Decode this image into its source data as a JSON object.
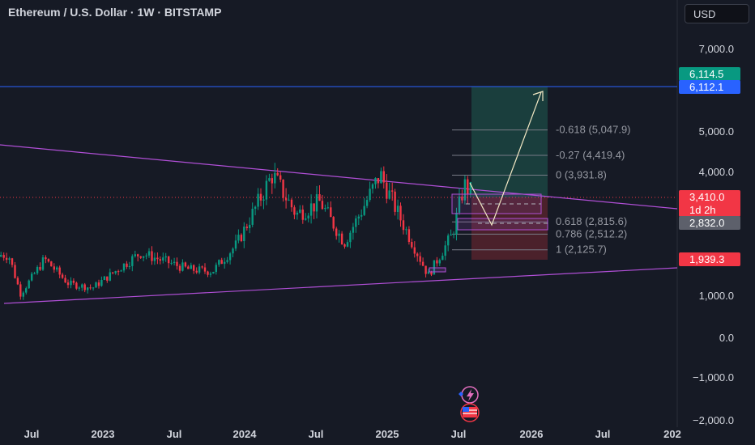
{
  "header": {
    "title": "Ethereum / U.S. Dollar · 1W · BITSTAMP",
    "currency": "USD"
  },
  "axis": {
    "y_ticks": [
      "7,000.0",
      "5,000.0",
      "4,000.0",
      "1,000.0",
      "0.0",
      "−1,000.0",
      "−2,000.0"
    ],
    "x_ticks": [
      "Jul",
      "2023",
      "Jul",
      "2024",
      "Jul",
      "2025",
      "Jul",
      "2026",
      "Jul",
      "202"
    ]
  },
  "price_tags": {
    "target_high": "6,114.5",
    "target_line": "6,112.1",
    "current_price": "3,410.0",
    "countdown": "1d 2h",
    "level_2832": "2,832.0",
    "level_1939": "1,939.3"
  },
  "fib_levels": [
    {
      "label": "-0.618 (5,047.9)",
      "price": 5047.9
    },
    {
      "label": "-0.27 (4,419.4)",
      "price": 4419.4
    },
    {
      "label": "0 (3,931.8)",
      "price": 3931.8
    },
    {
      "label": "0.618 (2,815.6)",
      "price": 2815.6
    },
    {
      "label": "0.786 (2,512.2)",
      "price": 2512.2
    },
    {
      "label": "1 (2,125.7)",
      "price": 2125.7
    }
  ],
  "chart_data": {
    "type": "candlestick",
    "title": "Ethereum / U.S. Dollar · 1W · BITSTAMP",
    "y_scale": "log",
    "currency": "USD",
    "x_ticks": [
      "Jul",
      "2023",
      "Jul",
      "2024",
      "Jul",
      "2025",
      "Jul",
      "2026",
      "Jul",
      "202"
    ],
    "y_ticks": [
      7000,
      5000,
      4000,
      1000,
      0,
      -1000,
      -2000
    ],
    "price_path": [
      {
        "date": "2022-05",
        "price": 2000
      },
      {
        "date": "2022-06",
        "price": 1050
      },
      {
        "date": "2022-08",
        "price": 1900
      },
      {
        "date": "2022-10",
        "price": 1300
      },
      {
        "date": "2022-12",
        "price": 1200
      },
      {
        "date": "2023-04",
        "price": 2050
      },
      {
        "date": "2023-06",
        "price": 1850
      },
      {
        "date": "2023-08",
        "price": 1650
      },
      {
        "date": "2023-10",
        "price": 1600
      },
      {
        "date": "2023-12",
        "price": 2250
      },
      {
        "date": "2024-03",
        "price": 3950
      },
      {
        "date": "2024-05",
        "price": 3000
      },
      {
        "date": "2024-07",
        "price": 3300
      },
      {
        "date": "2024-09",
        "price": 2300
      },
      {
        "date": "2024-12",
        "price": 3950
      },
      {
        "date": "2025-02",
        "price": 2700
      },
      {
        "date": "2025-04",
        "price": 1500
      },
      {
        "date": "2025-06",
        "price": 2500
      },
      {
        "date": "2025-07",
        "price": 3700
      },
      {
        "date": "2025-08",
        "price": 3410
      }
    ],
    "levels": {
      "current": 3410.0,
      "target": 6112.1,
      "stop": 1939.3,
      "support": 2832.0
    }
  }
}
